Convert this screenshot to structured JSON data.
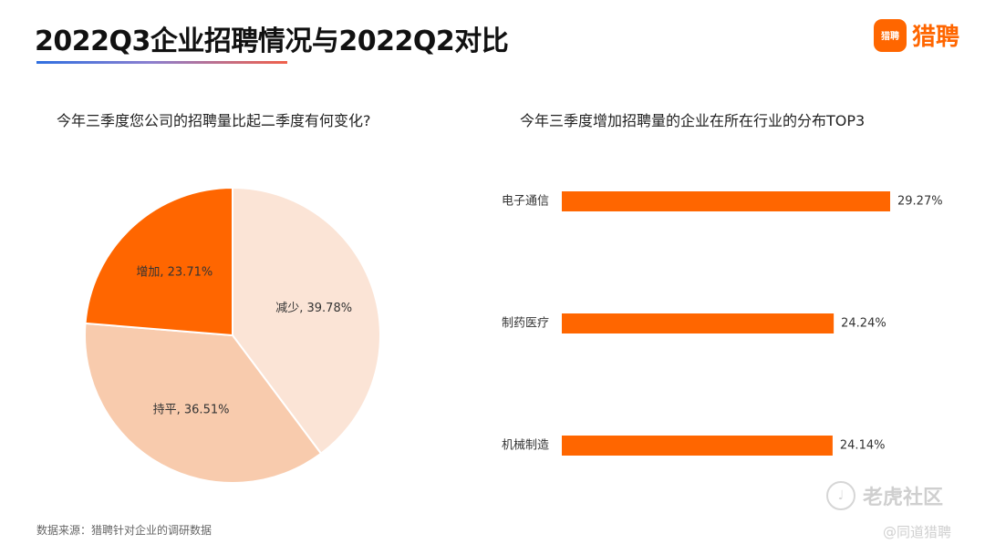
{
  "header": {
    "title": "2022Q3企业招聘情况与2022Q2对比",
    "logo_badge_text": "猎聘",
    "logo_text": "猎聘",
    "logo_color": "#ff6600"
  },
  "chart_data": [
    {
      "type": "pie",
      "title": "今年三季度您公司的招聘量比起二季度有何变化?",
      "slices": [
        {
          "label": "减少",
          "value": 39.78,
          "display": "减少, 39.78%",
          "color": "#fbe4d6"
        },
        {
          "label": "持平",
          "value": 36.51,
          "display": "持平, 36.51%",
          "color": "#f8cbad"
        },
        {
          "label": "增加",
          "value": 23.71,
          "display": "增加, 23.71%",
          "color": "#ff6600"
        }
      ],
      "start_angle_deg": 0,
      "direction": "clockwise"
    },
    {
      "type": "bar",
      "orientation": "horizontal",
      "title": "今年三季度增加招聘量的企业在所在行业的分布TOP3",
      "categories": [
        "电子通信",
        "制药医疗",
        "机械制造"
      ],
      "values": [
        29.27,
        24.24,
        24.14
      ],
      "value_labels": [
        "29.27%",
        "24.24%",
        "24.14%"
      ],
      "unit": "%",
      "color": "#ff6600",
      "xlim": [
        0,
        29.27
      ]
    }
  ],
  "footer": {
    "source": "数据来源：猎聘针对企业的调研数据",
    "watermark_main": "老虎社区",
    "watermark_sub": "@同道猎聘"
  }
}
